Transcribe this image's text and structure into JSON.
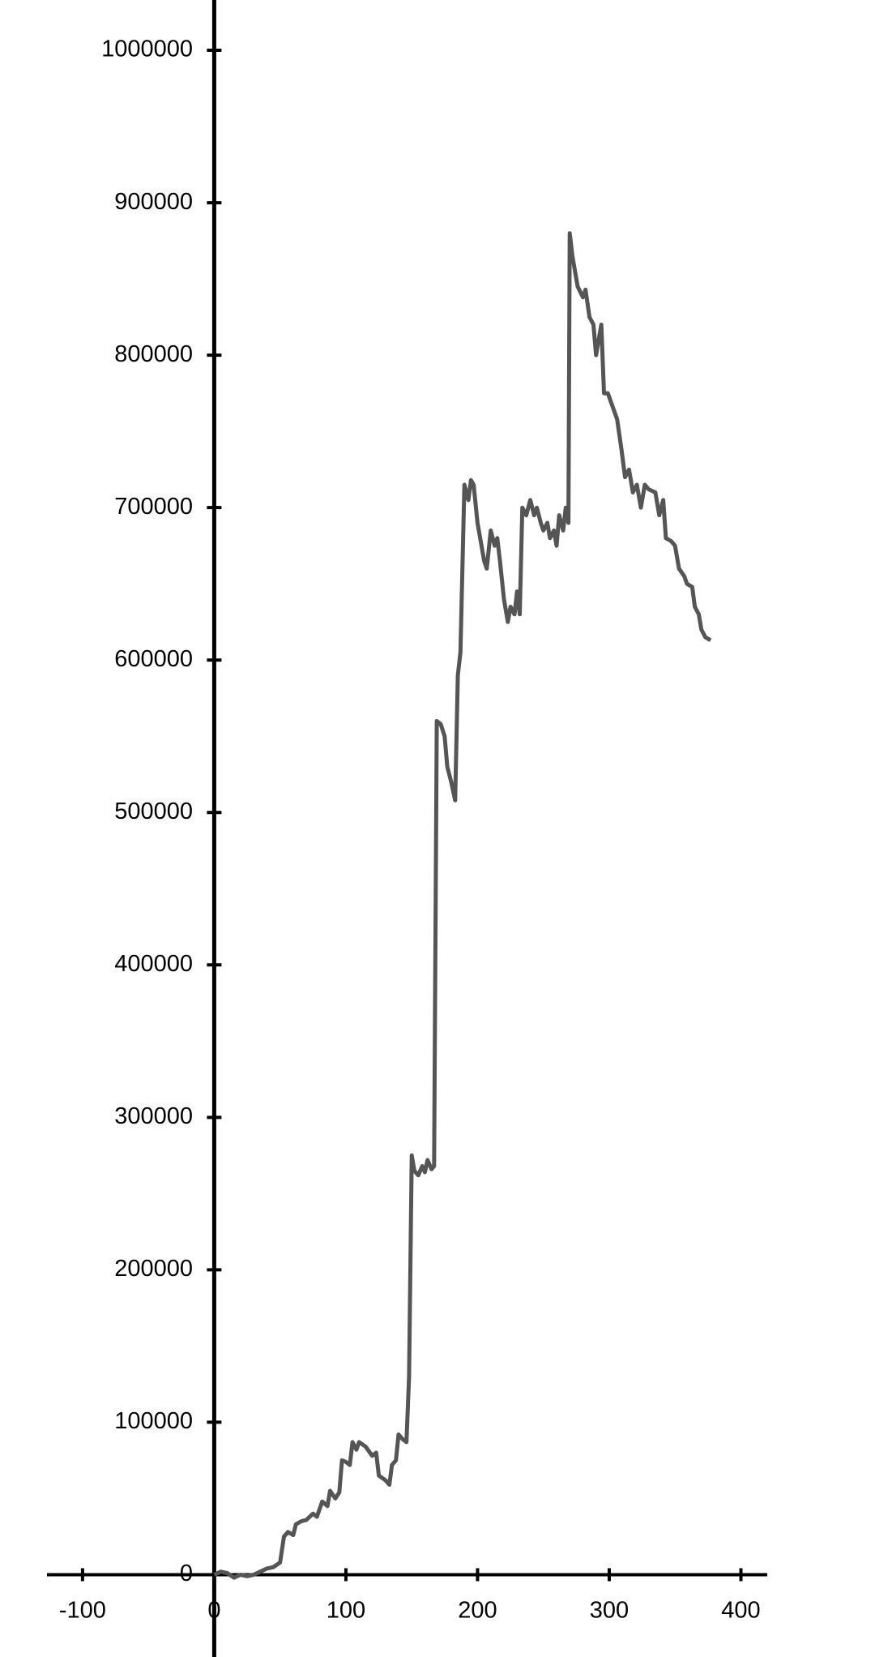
{
  "chart_data": {
    "type": "line",
    "x": [
      0,
      5,
      10,
      15,
      20,
      25,
      30,
      35,
      40,
      45,
      50,
      53,
      56,
      60,
      62,
      66,
      70,
      75,
      78,
      82,
      86,
      88,
      92,
      95,
      97,
      100,
      103,
      105,
      108,
      110,
      115,
      120,
      123,
      125,
      130,
      133,
      135,
      138,
      140,
      143,
      146,
      148,
      150,
      152,
      155,
      158,
      160,
      162,
      165,
      167,
      169,
      172,
      175,
      177,
      180,
      183,
      185,
      187,
      190,
      193,
      195,
      197,
      200,
      203,
      205,
      207,
      210,
      213,
      215,
      217,
      220,
      223,
      225,
      228,
      230,
      232,
      234,
      237,
      240,
      243,
      245,
      248,
      250,
      253,
      255,
      258,
      260,
      262,
      265,
      267,
      269,
      270,
      272,
      276,
      280,
      282,
      285,
      288,
      290,
      294,
      296,
      299,
      301,
      306,
      309,
      312,
      315,
      318,
      321,
      324,
      327,
      330,
      335,
      338,
      341,
      343,
      347,
      350,
      353,
      357,
      359,
      363,
      365,
      368,
      370,
      373,
      377
    ],
    "values": [
      0,
      2000,
      1000,
      -2000,
      0,
      -1000,
      0,
      2000,
      4000,
      5000,
      8000,
      25000,
      28000,
      26000,
      33000,
      35000,
      36000,
      40000,
      38000,
      48000,
      45000,
      55000,
      50000,
      54000,
      75000,
      74000,
      72000,
      87000,
      82000,
      87000,
      84000,
      78000,
      80000,
      65000,
      62000,
      59000,
      72000,
      75000,
      92000,
      89000,
      87000,
      130000,
      275000,
      265000,
      262000,
      268000,
      264000,
      272000,
      266000,
      268000,
      560000,
      558000,
      550000,
      530000,
      520000,
      508000,
      590000,
      605000,
      715000,
      705000,
      718000,
      715000,
      690000,
      675000,
      665000,
      660000,
      685000,
      675000,
      680000,
      665000,
      640000,
      625000,
      635000,
      630000,
      645000,
      630000,
      700000,
      695000,
      705000,
      695000,
      700000,
      690000,
      685000,
      690000,
      680000,
      685000,
      675000,
      695000,
      685000,
      700000,
      690000,
      880000,
      865000,
      845000,
      838000,
      843000,
      825000,
      820000,
      800000,
      820000,
      775000,
      775000,
      770000,
      758000,
      740000,
      720000,
      725000,
      710000,
      715000,
      700000,
      715000,
      712000,
      710000,
      695000,
      705000,
      680000,
      678000,
      675000,
      660000,
      655000,
      650000,
      648000,
      635000,
      630000,
      620000,
      615000,
      613000
    ],
    "color": "#555555",
    "xlim": [
      -127,
      420
    ],
    "ylim": [
      -54000,
      1033000
    ],
    "xticks": [
      -100,
      0,
      100,
      200,
      300,
      400
    ],
    "yticks": [
      0,
      100000,
      200000,
      300000,
      400000,
      500000,
      600000,
      700000,
      800000,
      900000,
      1000000
    ]
  }
}
